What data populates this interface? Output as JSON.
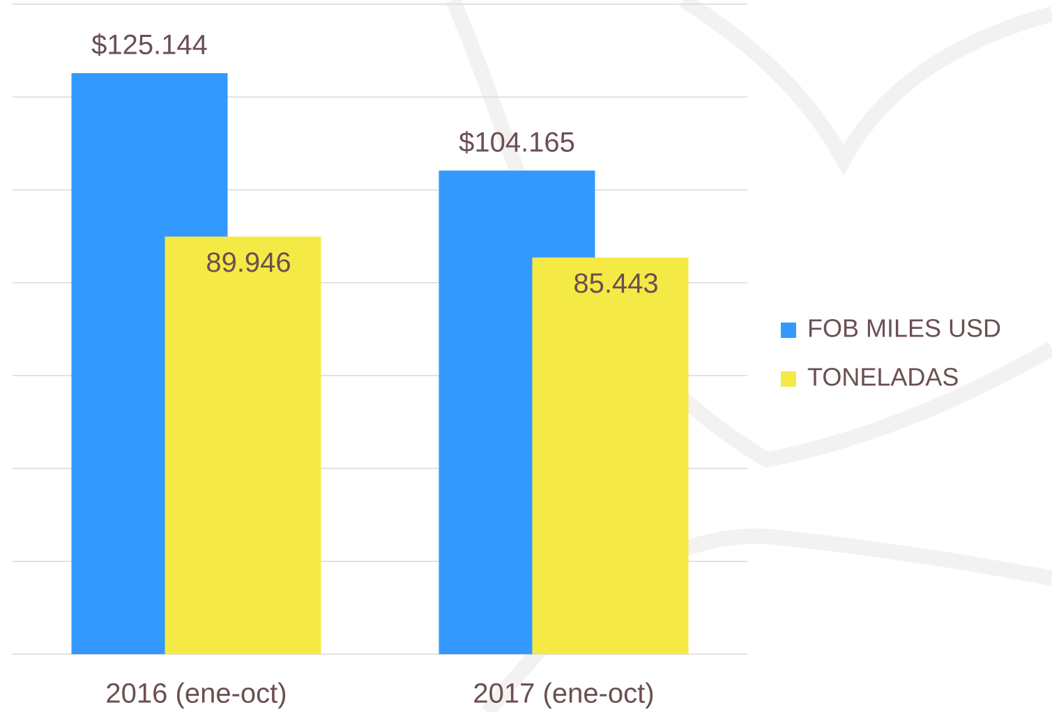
{
  "chart_data": {
    "type": "bar",
    "categories": [
      "2016 (ene-oct)",
      "2017 (ene-oct)"
    ],
    "series": [
      {
        "name": "FOB MILES USD",
        "color": "#3399ff",
        "values": [
          125144,
          104165
        ],
        "value_labels": [
          "$125.144",
          "$104.165"
        ]
      },
      {
        "name": "TONELADAS",
        "color": "#f5e945",
        "values": [
          89946,
          85443
        ],
        "value_labels": [
          "89.946",
          "85.443"
        ]
      }
    ],
    "ylim": [
      0,
      140000
    ],
    "yticks": [
      0,
      20000,
      40000,
      60000,
      80000,
      100000,
      120000,
      140000
    ],
    "grid": true,
    "legend": "right"
  }
}
